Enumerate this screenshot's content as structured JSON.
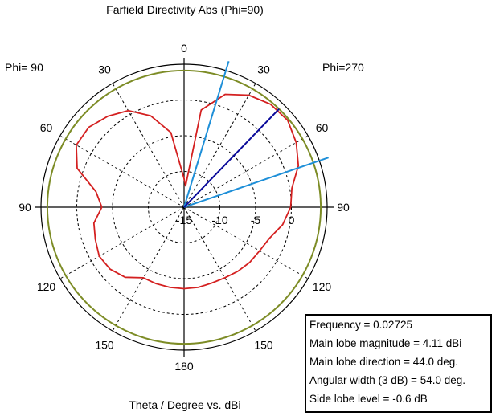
{
  "chart_data": {
    "type": "polar",
    "title": "Farfield Directivity Abs (Phi=90)",
    "xlabel": "Theta / Degree vs. dBi",
    "phi_left_label": "Phi= 90",
    "phi_right_label": "Phi=270",
    "radial_unit": "dBi",
    "radial_range": [
      -15,
      5
    ],
    "radial_ticks": [
      -15,
      -10,
      -5,
      0
    ],
    "radial_tick_labels": [
      "-15",
      "-10",
      "-5",
      "0"
    ],
    "angle_labels": [
      {
        "angle": 0,
        "text": "0"
      },
      {
        "angle": 30,
        "text": "30"
      },
      {
        "angle": 60,
        "text": "60"
      },
      {
        "angle": 90,
        "text": "90"
      },
      {
        "angle": 120,
        "text": "120"
      },
      {
        "angle": 150,
        "text": "150"
      },
      {
        "angle": 180,
        "text": "180"
      },
      {
        "angle": -150,
        "text": "150"
      },
      {
        "angle": -120,
        "text": "120"
      },
      {
        "angle": -90,
        "text": "90"
      },
      {
        "angle": -60,
        "text": "60"
      },
      {
        "angle": -30,
        "text": "30"
      }
    ],
    "grid": true,
    "colors": {
      "pattern": "#d42020",
      "reference_circle": "#7d8c26",
      "main_lobe": "#0a0a9a",
      "beamwidth": "#1e8fd8",
      "grid": "#000000"
    },
    "reference_circle_dbi": 4.11,
    "main_lobe_direction_deg": 44.0,
    "beamwidth_edges_deg": [
      17.0,
      71.0
    ],
    "series": [
      {
        "theta_deg": [
          -180,
          -170,
          -160,
          -150,
          -140,
          -130,
          -120,
          -110,
          -100,
          -90,
          -80,
          -70,
          -60,
          -50,
          -40,
          -30,
          -20,
          -10,
          0,
          4,
          10,
          20,
          30,
          40,
          50,
          60,
          70,
          80,
          90,
          100,
          110,
          120,
          130,
          140,
          150,
          160,
          170,
          180
        ],
        "dbi": [
          -3.6,
          -3.6,
          -3.6,
          -3.6,
          -2.2,
          -1.5,
          -1.3,
          -1.8,
          -2.2,
          -3.5,
          -2.5,
          0.9,
          2.4,
          2.4,
          1.6,
          0.6,
          -1.4,
          -4.4,
          -11.0,
          -12.0,
          -1.2,
          1.8,
          3.1,
          3.8,
          3.9,
          3.1,
          2.0,
          0.3,
          -0.1,
          -1.0,
          -2.3,
          -2.8,
          -3.0,
          -3.3,
          -3.6,
          -3.7,
          -3.6,
          -3.6
        ]
      }
    ]
  },
  "info_box": {
    "frequency": "Frequency = 0.02725",
    "main_lobe_magnitude": "Main lobe magnitude =    4.11 dBi",
    "main_lobe_direction": "Main lobe direction =  44.0 deg.",
    "angular_width": "Angular width (3 dB) =  54.0 deg.",
    "side_lobe_level": "Side lobe level =   -0.6 dB"
  }
}
